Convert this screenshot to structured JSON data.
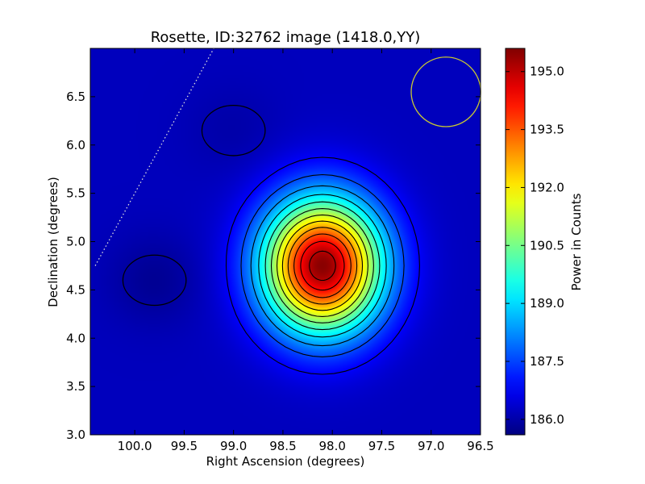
{
  "chart_data": {
    "type": "heatmap",
    "title": "Rosette, ID:32762 image (1418.0,YY)",
    "xlabel": "Right Ascension (degrees)",
    "ylabel": "Declination (degrees)",
    "colorbar_label": "Power in Counts",
    "xlim": [
      100.45,
      96.5
    ],
    "ylim": [
      3.0,
      7.0
    ],
    "x_ticks": [
      100.0,
      99.5,
      99.0,
      98.5,
      98.0,
      97.5,
      97.0,
      96.5
    ],
    "x_tick_labels": [
      "100.0",
      "99.5",
      "99.0",
      "98.5",
      "98.0",
      "97.5",
      "97.0",
      "96.5"
    ],
    "y_ticks": [
      3.0,
      3.5,
      4.0,
      4.5,
      5.0,
      5.5,
      6.0,
      6.5
    ],
    "y_tick_labels": [
      "3.0",
      "3.5",
      "4.0",
      "4.5",
      "5.0",
      "5.5",
      "6.0",
      "6.5"
    ],
    "colorbar_range": [
      185.6,
      195.6
    ],
    "colorbar_ticks": [
      186.0,
      187.5,
      189.0,
      190.5,
      192.0,
      193.5,
      195.0
    ],
    "colorbar_tick_labels": [
      "186.0",
      "187.5",
      "189.0",
      "190.5",
      "192.0",
      "193.5",
      "195.0"
    ],
    "colormap": "jet",
    "peak": {
      "ra": 98.1,
      "dec": 4.75,
      "value": 195.5
    },
    "background_value": 186.2,
    "local_minima": [
      {
        "ra": 99.8,
        "dec": 4.6,
        "value": 185.8
      },
      {
        "ra": 99.0,
        "dec": 6.15,
        "value": 186.0
      }
    ],
    "contours": "black contour lines at regular intensity levels",
    "beam_circle": {
      "ra": 96.85,
      "dec": 6.55,
      "radius_deg": 0.36,
      "color": "#c8c832"
    },
    "dotted_line": {
      "from": {
        "ra": 100.4,
        "dec": 4.75
      },
      "to": {
        "ra": 99.2,
        "dec": 7.0
      },
      "color": "#dddddd"
    }
  }
}
